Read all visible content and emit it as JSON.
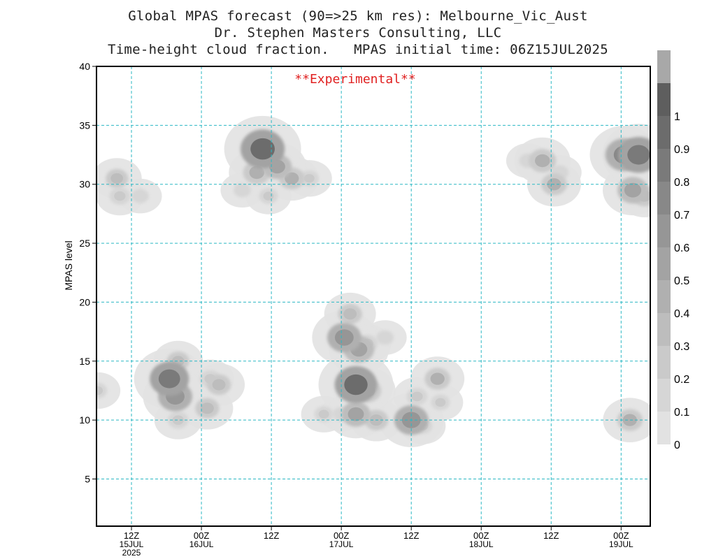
{
  "header": {
    "title_line1": "Global MPAS forecast (90=>25 km res): Melbourne_Vic_Aust",
    "title_line2": "Dr. Stephen Masters Consulting, LLC",
    "title_line3": "Time-height cloud fraction.   MPAS initial time: 06Z15JUL2025",
    "annotation": "**Experimental**"
  },
  "chart_data": {
    "type": "heatmap",
    "title": "Time-height cloud fraction.",
    "xlabel": "",
    "ylabel": "MPAS level",
    "xlim_hours_since_06Z15JUL2025": [
      0,
      95
    ],
    "ylim": [
      1,
      40
    ],
    "y_ticks": [
      5,
      10,
      15,
      20,
      25,
      30,
      35,
      40
    ],
    "x_ticks": [
      {
        "hour": 6,
        "lines": [
          "12Z",
          "15JUL",
          "2025"
        ]
      },
      {
        "hour": 18,
        "lines": [
          "00Z",
          "16JUL"
        ]
      },
      {
        "hour": 30,
        "lines": [
          "12Z"
        ]
      },
      {
        "hour": 42,
        "lines": [
          "00Z",
          "17JUL"
        ]
      },
      {
        "hour": 54,
        "lines": [
          "12Z"
        ]
      },
      {
        "hour": 66,
        "lines": [
          "00Z",
          "18JUL"
        ]
      },
      {
        "hour": 78,
        "lines": [
          "12Z"
        ]
      },
      {
        "hour": 90,
        "lines": [
          "00Z",
          "19JUL"
        ]
      }
    ],
    "grid": true,
    "colorbar": {
      "levels": [
        "0",
        "0.1",
        "0.2",
        "0.3",
        "0.4",
        "0.5",
        "0.6",
        "0.7",
        "0.8",
        "0.9",
        "1"
      ],
      "colors": [
        "#e2e2e2",
        "#d6d6d6",
        "#cacaca",
        "#bdbdbd",
        "#b0b0b0",
        "#a3a3a3",
        "#969696",
        "#888888",
        "#7a7a7a",
        "#6c6c6c",
        "#5e5e5e",
        "#a8a8a8"
      ]
    },
    "cloud_cells": [
      {
        "hour": 0.2,
        "level": 12.5,
        "fraction": 0.15
      },
      {
        "hour": 3.5,
        "level": 30.5,
        "fraction": 0.25
      },
      {
        "hour": 4.0,
        "level": 29.0,
        "fraction": 0.2
      },
      {
        "hour": 7.5,
        "level": 29.0,
        "fraction": 0.1
      },
      {
        "hour": 12.5,
        "level": 13.5,
        "fraction": 0.75
      },
      {
        "hour": 13.5,
        "level": 12.0,
        "fraction": 0.6
      },
      {
        "hour": 14.0,
        "level": 15.0,
        "fraction": 0.25
      },
      {
        "hour": 14.0,
        "level": 10.0,
        "fraction": 0.2
      },
      {
        "hour": 19.0,
        "level": 11.0,
        "fraction": 0.3
      },
      {
        "hour": 19.5,
        "level": 13.5,
        "fraction": 0.2
      },
      {
        "hour": 21.0,
        "level": 13.0,
        "fraction": 0.3
      },
      {
        "hour": 25.0,
        "level": 29.5,
        "fraction": 0.1
      },
      {
        "hour": 28.5,
        "level": 33.0,
        "fraction": 0.9
      },
      {
        "hour": 27.5,
        "level": 31.0,
        "fraction": 0.4
      },
      {
        "hour": 31.0,
        "level": 31.5,
        "fraction": 0.45
      },
      {
        "hour": 33.5,
        "level": 30.5,
        "fraction": 0.35
      },
      {
        "hour": 36.5,
        "level": 30.5,
        "fraction": 0.15
      },
      {
        "hour": 29.5,
        "level": 29.0,
        "fraction": 0.15
      },
      {
        "hour": 39.0,
        "level": 10.5,
        "fraction": 0.15
      },
      {
        "hour": 42.0,
        "level": 10.5,
        "fraction": 0.1
      },
      {
        "hour": 42.5,
        "level": 17.0,
        "fraction": 0.6
      },
      {
        "hour": 43.5,
        "level": 19.0,
        "fraction": 0.3
      },
      {
        "hour": 44.5,
        "level": 13.0,
        "fraction": 0.85
      },
      {
        "hour": 45.0,
        "level": 16.0,
        "fraction": 0.5
      },
      {
        "hour": 44.5,
        "level": 10.5,
        "fraction": 0.45
      },
      {
        "hour": 46.5,
        "level": 16.5,
        "fraction": 0.2
      },
      {
        "hour": 46.5,
        "level": 12.5,
        "fraction": 0.4
      },
      {
        "hour": 48.0,
        "level": 10.0,
        "fraction": 0.3
      },
      {
        "hour": 49.5,
        "level": 17.0,
        "fraction": 0.1
      },
      {
        "hour": 54.0,
        "level": 10.0,
        "fraction": 0.6
      },
      {
        "hour": 55.0,
        "level": 12.0,
        "fraction": 0.2
      },
      {
        "hour": 56.0,
        "level": 9.5,
        "fraction": 0.15
      },
      {
        "hour": 58.5,
        "level": 13.5,
        "fraction": 0.35
      },
      {
        "hour": 59.0,
        "level": 11.5,
        "fraction": 0.15
      },
      {
        "hour": 74.0,
        "level": 32.0,
        "fraction": 0.1
      },
      {
        "hour": 76.5,
        "level": 32.0,
        "fraction": 0.4
      },
      {
        "hour": 78.5,
        "level": 30.0,
        "fraction": 0.35
      },
      {
        "hour": 79.5,
        "level": 31.0,
        "fraction": 0.1
      },
      {
        "hour": 90.5,
        "level": 32.5,
        "fraction": 0.7
      },
      {
        "hour": 93.0,
        "level": 32.5,
        "fraction": 0.8
      },
      {
        "hour": 92.0,
        "level": 29.5,
        "fraction": 0.5
      },
      {
        "hour": 94.0,
        "level": 29.0,
        "fraction": 0.3
      },
      {
        "hour": 91.5,
        "level": 10.0,
        "fraction": 0.35
      }
    ]
  }
}
